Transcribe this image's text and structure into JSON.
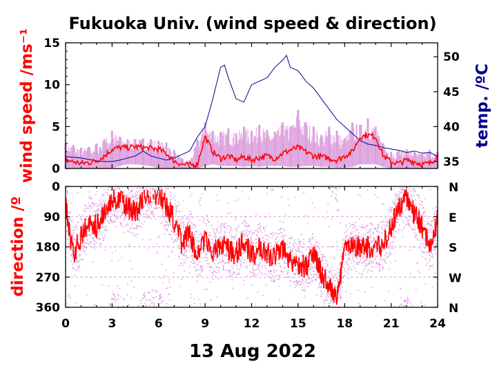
{
  "title": "Fukuoka Univ. (wind speed & direction)",
  "date_label": "13 Aug 2022",
  "colors": {
    "wind": "#ff0000",
    "range": "#dda0dd",
    "temp": "#00008b",
    "axis": "#000000"
  },
  "chart_data": [
    {
      "type": "line",
      "panel": "top",
      "ylabel_left": "wind speed /ms⁻¹",
      "ylabel_right": "temp. /ºC",
      "xlim": [
        0,
        24
      ],
      "ylim_left": [
        0,
        15
      ],
      "ylim_right": [
        34,
        52
      ],
      "xticks": [
        0,
        3,
        6,
        9,
        12,
        15,
        18,
        21,
        24
      ],
      "yticks_left": [
        0,
        5,
        10,
        15
      ],
      "yticks_right": [
        35,
        40,
        45,
        50
      ],
      "series": [
        {
          "axis": "left",
          "style": "range",
          "x": [
            0,
            0.5,
            1,
            1.5,
            2,
            2.5,
            3,
            3.5,
            4,
            4.5,
            5,
            5.5,
            6,
            6.5,
            7,
            7.5,
            8,
            8.5,
            9,
            9.5,
            10,
            10.5,
            11,
            11.5,
            12,
            12.5,
            13,
            13.5,
            14,
            14.5,
            15,
            15.5,
            16,
            16.5,
            17,
            17.5,
            18,
            18.5,
            19,
            19.5,
            20,
            20.5,
            21,
            21.5,
            22,
            22.5,
            23,
            23.5,
            24
          ],
          "low": [
            0,
            0,
            0,
            0,
            0,
            0,
            0,
            0.3,
            0.5,
            0.5,
            0.4,
            0.3,
            0,
            0,
            0,
            0,
            0,
            0,
            0.3,
            0.5,
            0.3,
            0.3,
            0.3,
            0.2,
            0.3,
            0.2,
            0.3,
            0.3,
            0.3,
            0.2,
            0.2,
            0.3,
            0.3,
            0.2,
            0.2,
            0.1,
            0.1,
            0.2,
            0.5,
            0.5,
            0.5,
            0.2,
            0,
            0,
            0,
            0,
            0,
            0,
            0
          ],
          "high": [
            3,
            2.8,
            2.5,
            2.6,
            3.0,
            3.5,
            4.5,
            3.8,
            3.5,
            3.5,
            3.6,
            3.5,
            3.3,
            3.1,
            2.2,
            1.2,
            1.0,
            3.5,
            5.5,
            4.5,
            4.4,
            4.8,
            4.2,
            5.0,
            4.5,
            5.2,
            4.6,
            4.4,
            5.5,
            5.0,
            7.0,
            5.5,
            5.0,
            4.0,
            5.0,
            4.5,
            3.6,
            5.5,
            5.2,
            6.0,
            5.0,
            3.0,
            2.0,
            2.2,
            2.3,
            2.0,
            1.8,
            2.2,
            2.0
          ]
        },
        {
          "name": "wind speed",
          "axis": "left",
          "style": "line",
          "x": [
            0,
            0.5,
            1,
            1.5,
            2,
            2.5,
            3,
            3.5,
            4,
            4.5,
            5,
            5.5,
            6,
            6.5,
            7,
            7.5,
            8,
            8.5,
            9,
            9.5,
            10,
            10.5,
            11,
            11.5,
            12,
            12.5,
            13,
            13.5,
            14,
            14.5,
            15,
            15.5,
            16,
            16.5,
            17,
            17.5,
            18,
            18.5,
            19,
            19.5,
            20,
            20.5,
            21,
            21.5,
            22,
            22.5,
            23,
            23.5,
            24
          ],
          "values": [
            1.0,
            0.8,
            0.6,
            0.7,
            0.9,
            1.5,
            2.3,
            2.5,
            2.5,
            2.6,
            2.5,
            2.4,
            2.3,
            1.8,
            0.9,
            0.5,
            0.4,
            0.5,
            3.8,
            2.0,
            1.2,
            1.5,
            1.0,
            1.4,
            1.0,
            1.3,
            1.5,
            1.2,
            1.8,
            2.2,
            2.5,
            2.0,
            1.5,
            1.4,
            1.2,
            1.0,
            1.5,
            2.0,
            3.8,
            4.0,
            3.8,
            1.5,
            0.8,
            0.6,
            1.0,
            0.8,
            0.5,
            0.6,
            1.5
          ]
        },
        {
          "name": "temp.",
          "axis": "right",
          "style": "line",
          "x": [
            0,
            0.5,
            1,
            1.5,
            2,
            2.5,
            3,
            3.5,
            4,
            4.5,
            5,
            5.5,
            6,
            6.5,
            7,
            7.5,
            8,
            8.5,
            9,
            9.5,
            10,
            10.25,
            10.5,
            11,
            11.5,
            12,
            12.5,
            13,
            13.5,
            14,
            14.25,
            14.5,
            15,
            15.5,
            16,
            16.5,
            17,
            17.5,
            18,
            18.5,
            19,
            19.5,
            20,
            20.5,
            21,
            21.5,
            22,
            22.5,
            23,
            23.5,
            24
          ],
          "values": [
            35.7,
            35.6,
            35.5,
            35.3,
            35.1,
            35.0,
            35.0,
            35.2,
            35.5,
            35.8,
            36.5,
            35.8,
            35.5,
            35.2,
            35.5,
            36.0,
            36.5,
            38.5,
            40.0,
            44.0,
            48.5,
            48.8,
            47.0,
            44.0,
            43.5,
            46.0,
            46.5,
            47.0,
            48.5,
            49.5,
            50.2,
            48.5,
            48.0,
            46.5,
            45.5,
            44.0,
            42.5,
            41.0,
            40.0,
            39.0,
            38.0,
            37.5,
            37.3,
            37.0,
            36.8,
            36.6,
            36.3,
            36.5,
            36.2,
            36.3,
            35.7
          ]
        }
      ]
    },
    {
      "type": "scatter",
      "panel": "bottom",
      "ylabel_left": "direction /º",
      "xlim": [
        0,
        24
      ],
      "ylim": [
        360,
        0
      ],
      "xticks": [
        0,
        3,
        6,
        9,
        12,
        15,
        18,
        21,
        24
      ],
      "yticks_left": [
        0,
        90,
        180,
        270,
        360
      ],
      "yticks_right_labels": [
        "N",
        "E",
        "S",
        "W",
        "N"
      ],
      "series": [
        {
          "name": "direction",
          "style": "line",
          "x": [
            0,
            0.5,
            1,
            1.5,
            2,
            2.5,
            3,
            3.5,
            4,
            4.5,
            5,
            5.5,
            6,
            6.5,
            7,
            7.5,
            8,
            8.5,
            9,
            9.5,
            10,
            10.5,
            11,
            11.5,
            12,
            12.5,
            13,
            13.5,
            14,
            14.5,
            15,
            15.5,
            16,
            16.5,
            17,
            17.5,
            18,
            18.5,
            19,
            19.5,
            20,
            20.5,
            21,
            21.5,
            22,
            22.5,
            23,
            23.5,
            24
          ],
          "values": [
            60,
            200,
            150,
            100,
            120,
            80,
            30,
            40,
            60,
            80,
            30,
            20,
            25,
            60,
            100,
            170,
            130,
            220,
            150,
            200,
            170,
            190,
            200,
            160,
            210,
            180,
            200,
            210,
            190,
            220,
            230,
            240,
            200,
            260,
            300,
            340,
            190,
            175,
            185,
            180,
            185,
            175,
            120,
            60,
            40,
            80,
            120,
            180,
            100
          ]
        }
      ]
    }
  ]
}
